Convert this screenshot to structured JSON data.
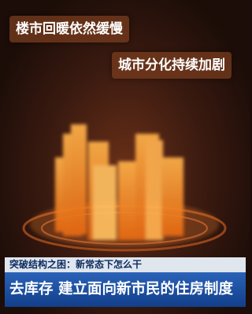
{
  "overlay": {
    "line1": "楼市回暖依然缓慢",
    "line2": "城市分化持续加剧"
  },
  "lower_third": {
    "topic": "突破结构之困：新常态下怎么干",
    "headline": "去库存 建立面向新市民的住房制度"
  }
}
